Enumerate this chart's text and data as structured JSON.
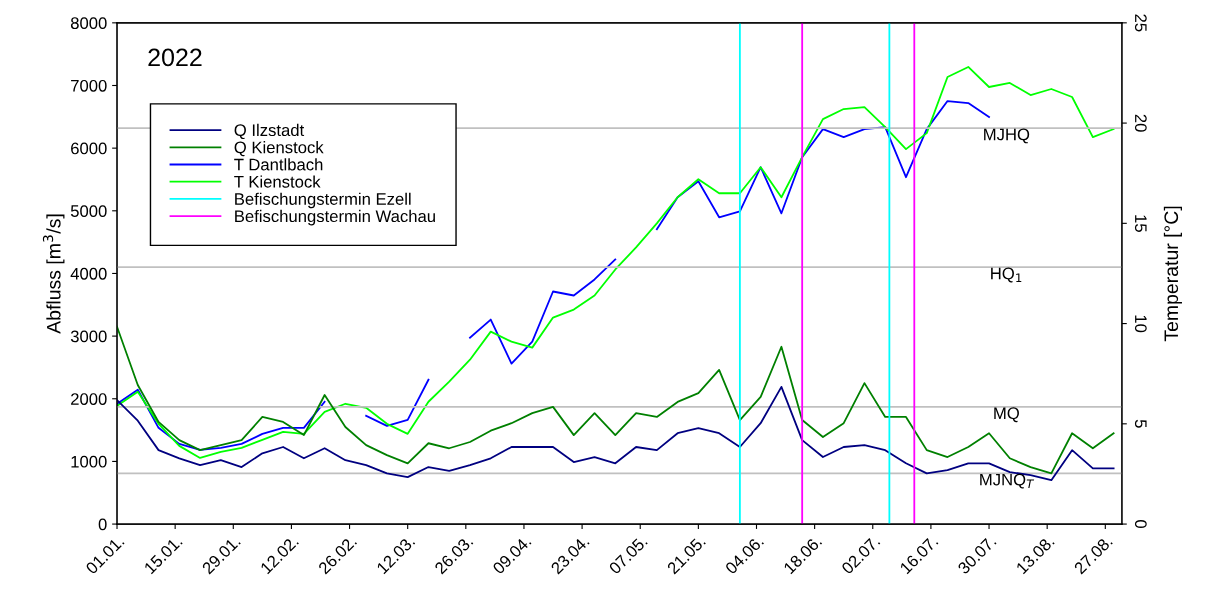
{
  "chart_data": {
    "type": "line",
    "annotations": [
      "2022"
    ],
    "ylabel": "Abfluss [m$^{3}$/s]",
    "y2label": "Temperatur [°C]",
    "x": [
      "2022-01-01",
      "2022-01-06",
      "2022-01-11",
      "2022-01-16",
      "2022-01-21",
      "2022-01-26",
      "2022-01-31",
      "2022-02-05",
      "2022-02-10",
      "2022-02-15",
      "2022-02-20",
      "2022-02-25",
      "2022-03-02",
      "2022-03-07",
      "2022-03-12",
      "2022-03-17",
      "2022-03-22",
      "2022-03-27",
      "2022-04-01",
      "2022-04-06",
      "2022-04-11",
      "2022-04-16",
      "2022-04-21",
      "2022-04-26",
      "2022-05-01",
      "2022-05-06",
      "2022-05-11",
      "2022-05-16",
      "2022-05-21",
      "2022-05-26",
      "2022-05-31",
      "2022-06-05",
      "2022-06-10",
      "2022-06-15",
      "2022-06-20",
      "2022-06-25",
      "2022-06-30",
      "2022-07-05",
      "2022-07-10",
      "2022-07-15",
      "2022-07-20",
      "2022-07-25",
      "2022-07-30",
      "2022-08-04",
      "2022-08-09",
      "2022-08-14",
      "2022-08-19",
      "2022-08-24",
      "2022-08-29"
    ],
    "series": [
      {
        "name": "Q Ilzstadt",
        "color": "#000080",
        "values": [
          1980,
          1650,
          1180,
          1050,
          940,
          1020,
          910,
          1130,
          1230,
          1050,
          1210,
          1020,
          940,
          810,
          750,
          910,
          850,
          940,
          1050,
          1230,
          1230,
          1230,
          990,
          1070,
          970,
          1230,
          1180,
          1450,
          1530,
          1450,
          1230,
          1610,
          2190,
          1340,
          1070,
          1230,
          1260,
          1180,
          970,
          810,
          860,
          970,
          970,
          830,
          780,
          700,
          1180,
          890,
          890
        ]
      },
      {
        "name": "Q Kienstock",
        "color": "#008000",
        "values": [
          3150,
          2220,
          1630,
          1340,
          1180,
          1260,
          1340,
          1710,
          1630,
          1420,
          2060,
          1550,
          1260,
          1100,
          970,
          1290,
          1210,
          1310,
          1490,
          1610,
          1770,
          1870,
          1420,
          1770,
          1420,
          1770,
          1710,
          1950,
          2090,
          2460,
          1660,
          2030,
          2830,
          1660,
          1390,
          1610,
          2250,
          1710,
          1710,
          1180,
          1070,
          1230,
          1450,
          1050,
          910,
          810,
          1450,
          1210,
          1450
        ]
      },
      {
        "name": "T Dantlbach",
        "color": "#0000ff",
        "axis": "y2",
        "values": [
          6.0,
          6.7,
          4.8,
          4.0,
          3.7,
          3.8,
          4.0,
          4.5,
          4.8,
          4.8,
          6.1,
          null,
          5.4,
          4.9,
          5.2,
          7.2,
          null,
          9.3,
          10.2,
          8.0,
          9.1,
          11.6,
          11.4,
          12.2,
          13.2,
          null,
          14.7,
          16.3,
          17.1,
          15.3,
          15.6,
          17.8,
          15.5,
          18.3,
          19.7,
          19.3,
          19.7,
          19.8,
          17.3,
          19.7,
          21.1,
          21.0,
          20.3,
          null,
          null,
          null,
          null,
          null,
          null
        ]
      },
      {
        "name": "T Kienstock",
        "color": "#00ff00",
        "axis": "y2",
        "values": [
          5.9,
          6.6,
          5.0,
          3.9,
          3.3,
          3.6,
          3.8,
          4.2,
          4.6,
          4.5,
          5.6,
          6.0,
          5.8,
          5.0,
          4.5,
          6.1,
          7.1,
          8.2,
          9.6,
          9.1,
          8.8,
          10.3,
          10.7,
          11.4,
          12.7,
          13.8,
          15.0,
          16.3,
          17.2,
          16.5,
          16.5,
          17.8,
          16.3,
          18.3,
          20.2,
          20.7,
          20.8,
          19.8,
          18.7,
          19.5,
          22.3,
          22.8,
          21.8,
          22.0,
          21.4,
          21.7,
          21.3,
          19.3,
          19.7
        ]
      },
      {
        "name": "Befischungstermin Ezell",
        "color": "#00ffff",
        "x": [
          "2022-05-31",
          "2022-05-31"
        ],
        "values": [
          0,
          8000
        ]
      },
      {
        "name": "Befischungstermin Wachau",
        "color": "#ff00ff",
        "x": [
          "2022-06-15",
          "2022-06-15"
        ],
        "values": [
          0,
          8000
        ]
      },
      {
        "color": "#00ffff",
        "x": [
          "2022-07-06",
          "2022-07-06"
        ],
        "values": [
          0,
          8000
        ]
      },
      {
        "color": "#ff00ff",
        "x": [
          "2022-07-12",
          "2022-07-12"
        ],
        "values": [
          0,
          8000
        ]
      }
    ],
    "xlim": [
      "2022-01-01",
      "2022-08-31"
    ],
    "xticks": [
      {
        "value": "2022-01-01",
        "label": "01.01."
      },
      {
        "value": "2022-01-15",
        "label": "15.01."
      },
      {
        "value": "2022-01-29",
        "label": "29.01."
      },
      {
        "value": "2022-02-12",
        "label": "12.02."
      },
      {
        "value": "2022-02-26",
        "label": "26.02."
      },
      {
        "value": "2022-03-12",
        "label": "12.03."
      },
      {
        "value": "2022-03-26",
        "label": "26.03."
      },
      {
        "value": "2022-04-09",
        "label": "09.04."
      },
      {
        "value": "2022-04-23",
        "label": "23.04."
      },
      {
        "value": "2022-05-07",
        "label": "07.05."
      },
      {
        "value": "2022-05-21",
        "label": "21.05."
      },
      {
        "value": "2022-06-04",
        "label": "04.06."
      },
      {
        "value": "2022-06-18",
        "label": "18.06."
      },
      {
        "value": "2022-07-02",
        "label": "02.07."
      },
      {
        "value": "2022-07-16",
        "label": "16.07."
      },
      {
        "value": "2022-07-30",
        "label": "30.07."
      },
      {
        "value": "2022-08-13",
        "label": "13.08."
      },
      {
        "value": "2022-08-27",
        "label": "27.08."
      }
    ],
    "ylim": [
      0,
      8000
    ],
    "yticks": [
      0,
      1000,
      2000,
      3000,
      4000,
      5000,
      6000,
      7000,
      8000
    ],
    "y2lim": [
      0,
      25
    ],
    "y2ticks": [
      0,
      5,
      10,
      15,
      20,
      25
    ],
    "ref_lines": [
      {
        "axis": "y",
        "value": 6320,
        "label": "MJHQ",
        "color": "#c0c0c0"
      },
      {
        "axis": "y",
        "value": 4100,
        "label": "HQ$_{1}$",
        "color": "#c0c0c0"
      },
      {
        "axis": "y",
        "value": 1870,
        "label": "MQ",
        "color": "#c0c0c0"
      },
      {
        "axis": "y",
        "value": 810,
        "label": "MJNQ$_{T}$",
        "color": "#c0c0c0"
      }
    ],
    "legend": "top left",
    "grid": false,
    "marker": "none",
    "line_style": "solid"
  }
}
